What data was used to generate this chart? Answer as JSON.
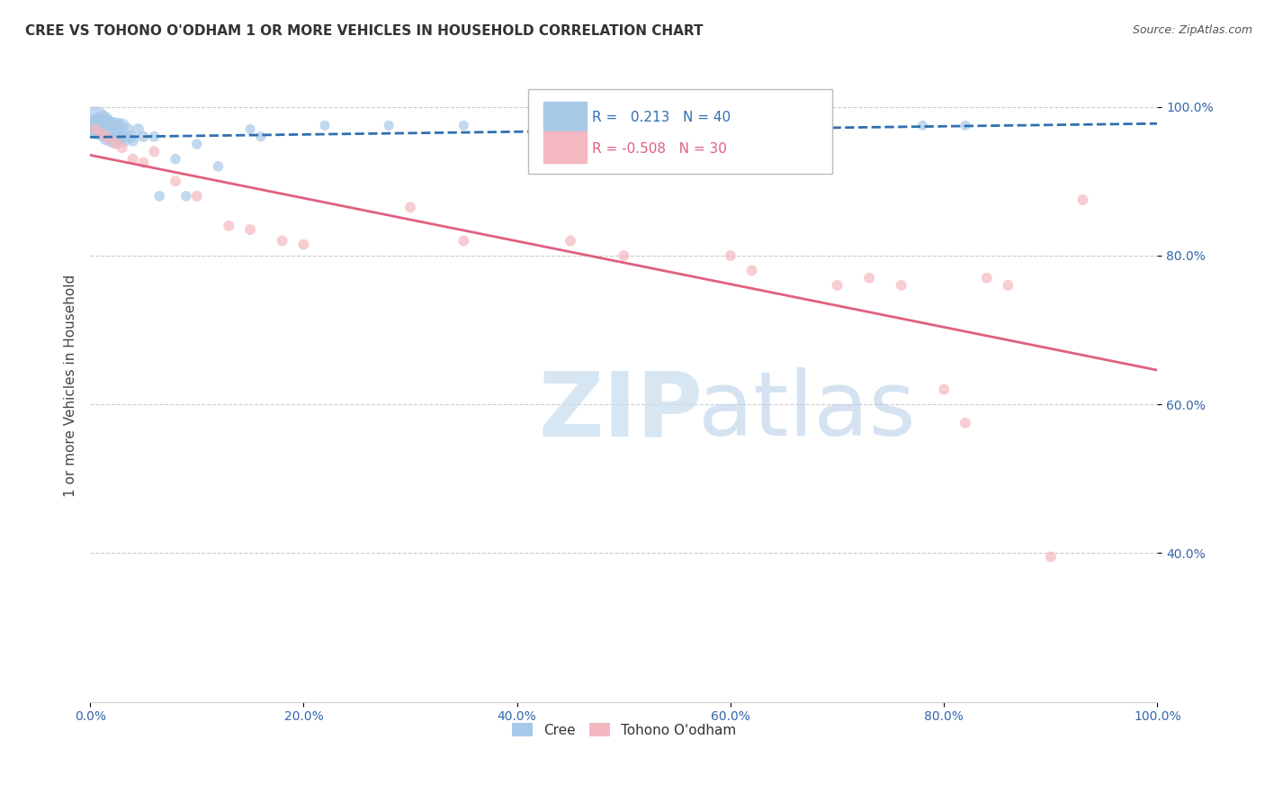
{
  "title": "CREE VS TOHONO O'ODHAM 1 OR MORE VEHICLES IN HOUSEHOLD CORRELATION CHART",
  "source": "Source: ZipAtlas.com",
  "ylabel": "1 or more Vehicles in Household",
  "cree_R": 0.213,
  "cree_N": 40,
  "tohono_R": -0.508,
  "tohono_N": 30,
  "cree_color": "#a8c8e8",
  "tohono_color": "#f4b8c0",
  "cree_line_color": "#3070b0",
  "tohono_line_color": "#e06080",
  "background_color": "#ffffff",
  "xlim": [
    0.0,
    1.0
  ],
  "ylim": [
    0.2,
    1.05
  ],
  "ytick_positions": [
    0.4,
    0.6,
    0.8,
    1.0
  ],
  "ytick_labels": [
    "40.0%",
    "60.0%",
    "80.0%",
    "100.0%"
  ],
  "xtick_positions": [
    0.0,
    0.2,
    0.4,
    0.6,
    0.8,
    1.0
  ],
  "xtick_labels": [
    "0.0%",
    "20.0%",
    "40.0%",
    "60.0%",
    "80.0%",
    "100.0%"
  ],
  "cree_x": [
    0.005,
    0.007,
    0.008,
    0.01,
    0.012,
    0.013,
    0.015,
    0.015,
    0.016,
    0.018,
    0.02,
    0.02,
    0.022,
    0.022,
    0.025,
    0.025,
    0.027,
    0.03,
    0.03,
    0.032,
    0.035,
    0.038,
    0.04,
    0.045,
    0.05,
    0.06,
    0.065,
    0.08,
    0.09,
    0.1,
    0.12,
    0.15,
    0.16,
    0.22,
    0.28,
    0.35,
    0.5,
    0.52,
    0.78,
    0.82
  ],
  "cree_y": [
    0.98,
    0.975,
    0.97,
    0.975,
    0.98,
    0.97,
    0.965,
    0.975,
    0.96,
    0.97,
    0.975,
    0.965,
    0.96,
    0.955,
    0.975,
    0.97,
    0.96,
    0.975,
    0.96,
    0.955,
    0.97,
    0.96,
    0.955,
    0.97,
    0.96,
    0.96,
    0.88,
    0.93,
    0.88,
    0.95,
    0.92,
    0.97,
    0.96,
    0.975,
    0.975,
    0.975,
    0.975,
    0.975,
    0.975,
    0.975
  ],
  "cree_sizes": [
    600,
    350,
    300,
    400,
    300,
    250,
    220,
    280,
    200,
    200,
    200,
    180,
    170,
    160,
    160,
    150,
    140,
    130,
    120,
    110,
    100,
    90,
    90,
    85,
    80,
    75,
    70,
    70,
    70,
    70,
    70,
    65,
    65,
    65,
    65,
    65,
    65,
    65,
    65,
    65
  ],
  "tohono_x": [
    0.005,
    0.01,
    0.015,
    0.02,
    0.025,
    0.03,
    0.04,
    0.05,
    0.06,
    0.08,
    0.1,
    0.13,
    0.15,
    0.18,
    0.2,
    0.3,
    0.35,
    0.45,
    0.5,
    0.6,
    0.62,
    0.7,
    0.73,
    0.76,
    0.8,
    0.82,
    0.84,
    0.86,
    0.9,
    0.93
  ],
  "tohono_y": [
    0.97,
    0.965,
    0.96,
    0.955,
    0.95,
    0.945,
    0.93,
    0.925,
    0.94,
    0.9,
    0.88,
    0.84,
    0.835,
    0.82,
    0.815,
    0.865,
    0.82,
    0.82,
    0.8,
    0.8,
    0.78,
    0.76,
    0.77,
    0.76,
    0.62,
    0.575,
    0.77,
    0.76,
    0.395,
    0.875
  ],
  "tohono_sizes": [
    75,
    75,
    75,
    75,
    75,
    75,
    75,
    75,
    75,
    75,
    75,
    75,
    75,
    75,
    75,
    75,
    75,
    75,
    75,
    75,
    75,
    75,
    75,
    75,
    75,
    75,
    75,
    75,
    75,
    75
  ]
}
